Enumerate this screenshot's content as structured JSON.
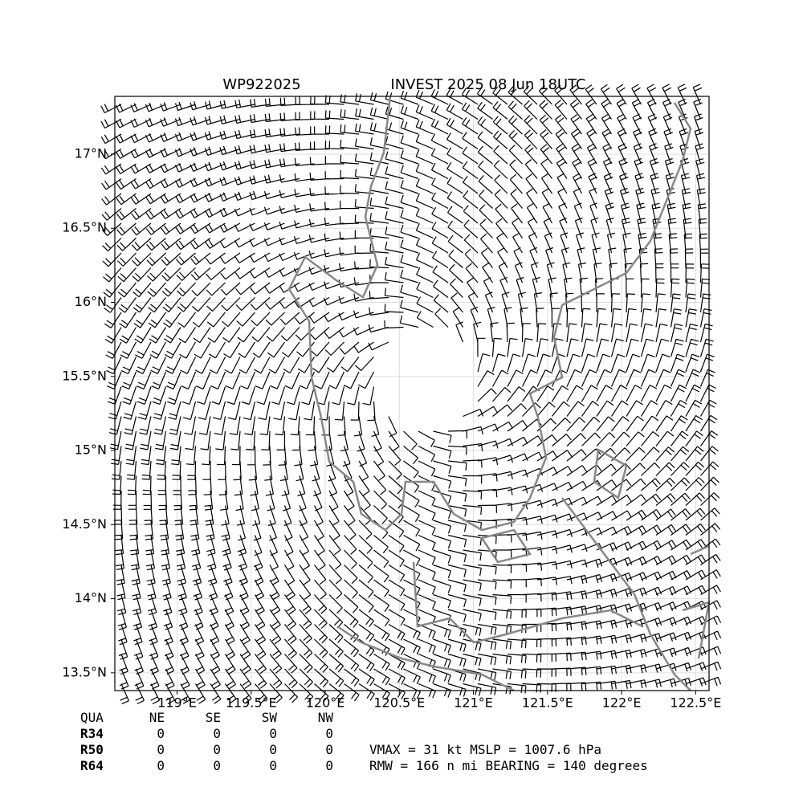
{
  "map": {
    "title_left": "WP922025",
    "title_right": "INVEST 2025 08 Jun 18UTC",
    "xlim": [
      118.58,
      122.59
    ],
    "ylim": [
      13.38,
      17.39
    ],
    "xticks": [
      {
        "value": 119,
        "label": "119°E"
      },
      {
        "value": 119.5,
        "label": "119.5°E"
      },
      {
        "value": 120,
        "label": "120°E"
      },
      {
        "value": 120.5,
        "label": "120.5°E"
      },
      {
        "value": 121,
        "label": "121°E"
      },
      {
        "value": 121.5,
        "label": "121.5°E"
      },
      {
        "value": 122,
        "label": "122°E"
      },
      {
        "value": 122.5,
        "label": "122.5°E"
      }
    ],
    "yticks": [
      {
        "value": 13.5,
        "label": "13.5°N"
      },
      {
        "value": 14,
        "label": "14°N"
      },
      {
        "value": 14.5,
        "label": "14.5°N"
      },
      {
        "value": 15,
        "label": "15°N"
      },
      {
        "value": 15.5,
        "label": "15.5°N"
      },
      {
        "value": 16,
        "label": "16°N"
      },
      {
        "value": 16.5,
        "label": "16.5°N"
      },
      {
        "value": 17,
        "label": "17°N"
      }
    ],
    "grid": true
  },
  "table": {
    "header": [
      "QUA",
      "NE",
      "SE",
      "SW",
      "NW"
    ],
    "rows": [
      [
        "R34",
        "0",
        "0",
        "0",
        "0"
      ],
      [
        "R50",
        "0",
        "0",
        "0",
        "0"
      ],
      [
        "R64",
        "0",
        "0",
        "0",
        "0"
      ]
    ]
  },
  "info": [
    "VMAX =  31 kt MSLP = 1007.6 hPa",
    "RMW = 166 n mi BEARING = 140 degrees"
  ]
}
